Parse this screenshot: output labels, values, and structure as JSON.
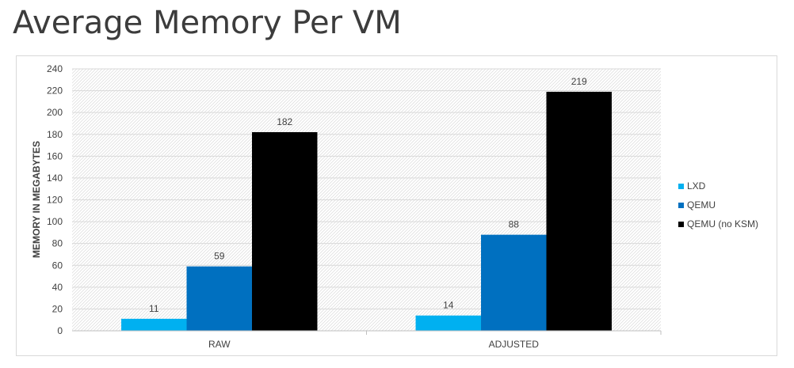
{
  "page": {
    "title": "Average Memory Per VM"
  },
  "chart_data": {
    "type": "bar",
    "title": "",
    "xlabel": "",
    "ylabel": "MEMORY IN MEGABYTES",
    "categories": [
      "RAW",
      "ADJUSTED"
    ],
    "series": [
      {
        "name": "LXD",
        "values": [
          11,
          14
        ],
        "color": "#00b0f0"
      },
      {
        "name": "QEMU",
        "values": [
          59,
          88
        ],
        "color": "#0070c0"
      },
      {
        "name": "QEMU (no KSM)",
        "values": [
          182,
          219
        ],
        "color": "#000000"
      }
    ],
    "ylim": [
      0,
      240
    ],
    "yticks": [
      "0",
      "20",
      "40",
      "60",
      "80",
      "100",
      "120",
      "140",
      "160",
      "180",
      "200",
      "220",
      "240"
    ],
    "data_labels": [
      [
        "11",
        "14"
      ],
      [
        "59",
        "88"
      ],
      [
        "182",
        "219"
      ]
    ],
    "grid": true,
    "plot_background": "hatched light gray",
    "legend_position": "right"
  }
}
